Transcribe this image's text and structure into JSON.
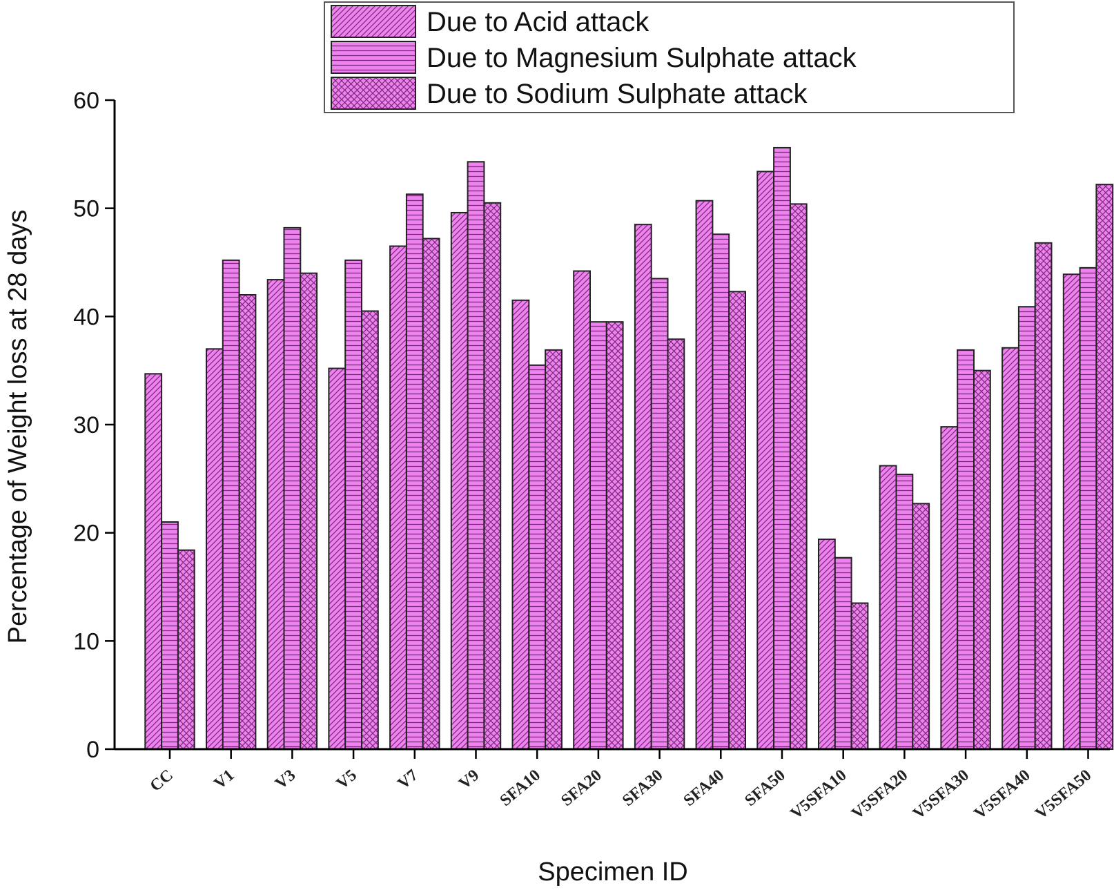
{
  "chart_data": {
    "type": "bar",
    "xlabel": "Specimen ID",
    "ylabel": "Percentage of Weight loss at 28 days",
    "ylim": [
      0,
      60
    ],
    "yticks": [
      0,
      10,
      20,
      30,
      40,
      50,
      60
    ],
    "grid": false,
    "legend_position": "top",
    "categories": [
      "CC",
      "V1",
      "V3",
      "V5",
      "V7",
      "V9",
      "SFA10",
      "SFA20",
      "SFA30",
      "SFA40",
      "SFA50",
      "V5SFA10",
      "V5SFA20",
      "V5SFA30",
      "V5SFA40",
      "V5SFA50"
    ],
    "series": [
      {
        "name": "Due to Acid attack",
        "pattern": "diagonal-hatch",
        "color": "#ee82ee",
        "values": [
          34.7,
          37.0,
          43.4,
          35.2,
          46.5,
          49.6,
          41.5,
          44.2,
          48.5,
          50.7,
          53.4,
          19.4,
          26.2,
          29.8,
          37.1,
          43.9
        ]
      },
      {
        "name": "Due to Magnesium Sulphate attack",
        "pattern": "horizontal-lines",
        "color": "#ee82ee",
        "values": [
          21.0,
          45.2,
          48.2,
          45.2,
          51.3,
          54.3,
          35.5,
          39.5,
          43.5,
          47.6,
          55.6,
          17.7,
          25.4,
          36.9,
          40.9,
          44.5
        ]
      },
      {
        "name": "Due to Sodium Sulphate attack",
        "pattern": "crosshatch",
        "color": "#ee82ee",
        "values": [
          18.4,
          42.0,
          44.0,
          40.5,
          47.2,
          50.5,
          36.9,
          39.5,
          37.9,
          42.3,
          50.4,
          13.5,
          22.7,
          35.0,
          46.8,
          52.2
        ]
      }
    ]
  }
}
